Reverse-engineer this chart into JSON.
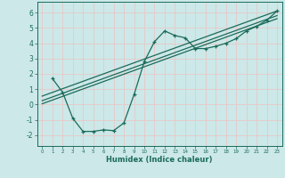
{
  "xlabel": "Humidex (Indice chaleur)",
  "ylabel": "",
  "xlim": [
    -0.5,
    23.5
  ],
  "ylim": [
    -2.7,
    6.7
  ],
  "xticks": [
    0,
    1,
    2,
    3,
    4,
    5,
    6,
    7,
    8,
    9,
    10,
    11,
    12,
    13,
    14,
    15,
    16,
    17,
    18,
    19,
    20,
    21,
    22,
    23
  ],
  "yticks": [
    -2,
    -1,
    0,
    1,
    2,
    3,
    4,
    5,
    6
  ],
  "bg_color": "#cce8e8",
  "line_color": "#1a6b5a",
  "grid_color": "#e8c8c8",
  "main_line_x": [
    1,
    2,
    3,
    4,
    5,
    6,
    7,
    8,
    9,
    10,
    11,
    12,
    13,
    14,
    15,
    16,
    17,
    18,
    19,
    20,
    21,
    22,
    23
  ],
  "main_line_y": [
    1.7,
    0.8,
    -0.9,
    -1.75,
    -1.75,
    -1.65,
    -1.7,
    -1.2,
    0.65,
    2.8,
    4.1,
    4.8,
    4.5,
    4.35,
    3.65,
    3.65,
    3.8,
    4.0,
    4.3,
    4.8,
    5.1,
    5.5,
    6.1
  ],
  "line1_x": [
    0,
    23
  ],
  "line1_y": [
    0.55,
    6.1
  ],
  "line2_x": [
    0,
    23
  ],
  "line2_y": [
    0.25,
    5.8
  ],
  "line3_x": [
    0,
    23
  ],
  "line3_y": [
    0.05,
    5.6
  ]
}
